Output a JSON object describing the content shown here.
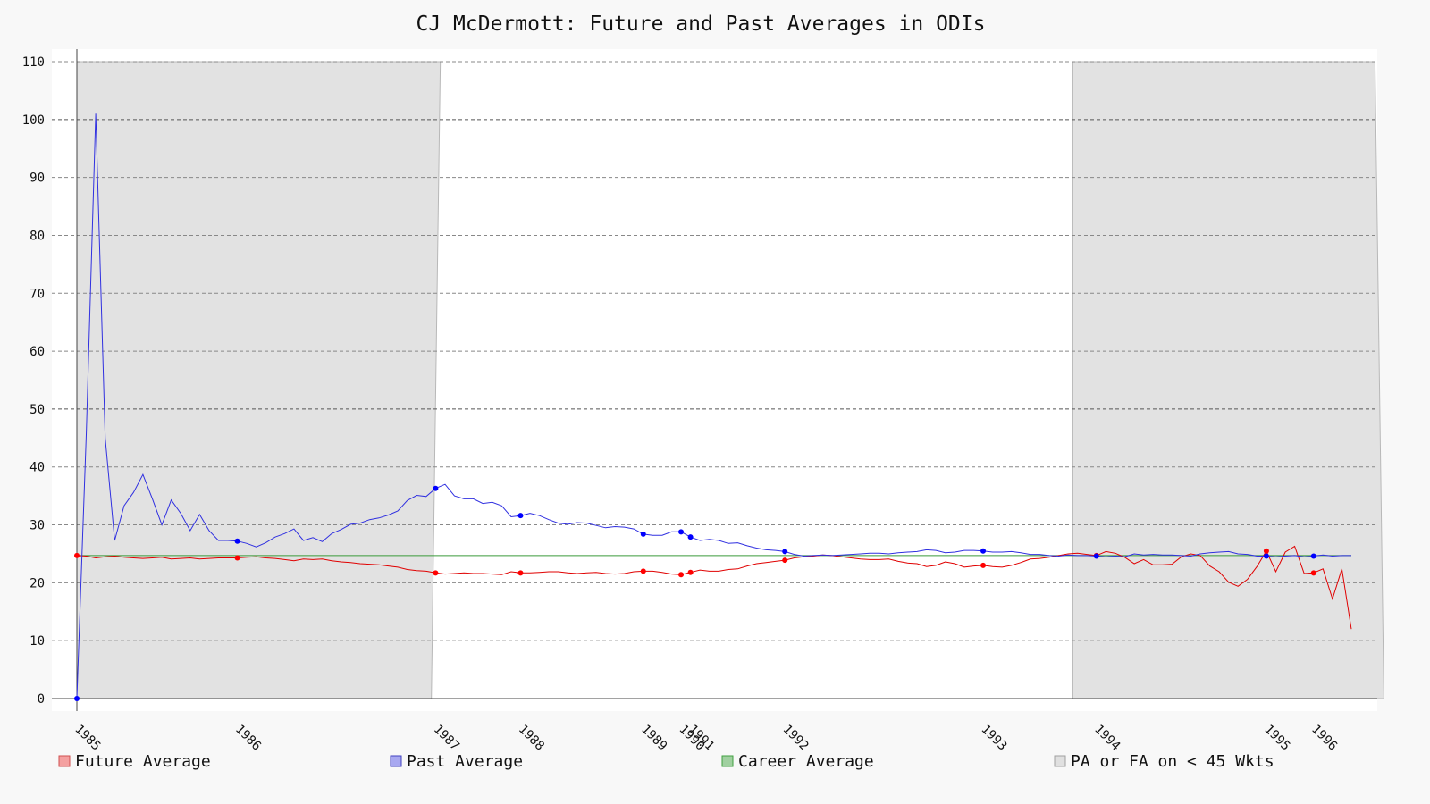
{
  "chart_data": {
    "type": "line",
    "title": "CJ McDermott: Future and Past Averages in ODIs",
    "xlabel": "",
    "ylabel": "",
    "ylim": [
      0,
      110
    ],
    "y_ticks": [
      0,
      10,
      20,
      30,
      40,
      50,
      60,
      70,
      80,
      90,
      100,
      110
    ],
    "x_axis_kind": "innings index (0-138)",
    "x_tick_labels": [
      {
        "i": 0,
        "label": "1985"
      },
      {
        "i": 17,
        "label": "1986"
      },
      {
        "i": 38,
        "label": "1987"
      },
      {
        "i": 47,
        "label": "1988"
      },
      {
        "i": 60,
        "label": "1989"
      },
      {
        "i": 64,
        "label": "1990"
      },
      {
        "i": 65,
        "label": "1991"
      },
      {
        "i": 75,
        "label": "1992"
      },
      {
        "i": 96,
        "label": "1993"
      },
      {
        "i": 108,
        "label": "1994"
      },
      {
        "i": 126,
        "label": "1995"
      },
      {
        "i": 131,
        "label": "1996"
      }
    ],
    "grid": true,
    "legend_position": "bottom",
    "shaded_regions": [
      [
        0,
        38.5
      ],
      [
        105.5,
        137.5
      ]
    ],
    "career_average": 24.7,
    "series": [
      {
        "name": "Future Average",
        "color": "#e00000",
        "values": [
          24.7,
          24.6,
          24.3,
          24.5,
          24.6,
          24.4,
          24.3,
          24.2,
          24.3,
          24.4,
          24.1,
          24.2,
          24.3,
          24.1,
          24.2,
          24.3,
          24.3,
          24.3,
          24.4,
          24.5,
          24.3,
          24.2,
          24.0,
          23.8,
          24.1,
          24.0,
          24.1,
          23.8,
          23.6,
          23.5,
          23.3,
          23.2,
          23.1,
          22.9,
          22.7,
          22.3,
          22.1,
          22.0,
          21.7,
          21.5,
          21.6,
          21.7,
          21.6,
          21.6,
          21.5,
          21.4,
          21.9,
          21.7,
          21.7,
          21.8,
          21.9,
          21.9,
          21.7,
          21.6,
          21.7,
          21.8,
          21.6,
          21.5,
          21.6,
          21.9,
          22.0,
          22.0,
          21.8,
          21.5,
          21.4,
          21.8,
          22.2,
          22.0,
          22.0,
          22.3,
          22.4,
          22.9,
          23.3,
          23.5,
          23.7,
          23.9,
          24.3,
          24.5,
          24.6,
          24.8,
          24.7,
          24.5,
          24.3,
          24.1,
          24.0,
          24.0,
          24.1,
          23.7,
          23.4,
          23.3,
          22.8,
          23.0,
          23.6,
          23.3,
          22.7,
          22.9,
          23.0,
          22.8,
          22.7,
          23.0,
          23.5,
          24.1,
          24.2,
          24.4,
          24.7,
          25.0,
          25.1,
          24.9,
          24.7,
          25.4,
          25.1,
          24.4,
          23.3,
          24.0,
          23.1,
          23.1,
          23.2,
          24.5,
          25.0,
          24.7,
          22.9,
          21.9,
          20.1,
          19.4,
          20.6,
          22.8,
          25.5,
          21.9,
          25.3,
          26.3,
          21.6,
          21.7,
          22.4,
          17.2,
          22.4,
          12.0
        ]
      },
      {
        "name": "Past Average",
        "color": "#3030e0",
        "values": [
          0,
          46.0,
          101.0,
          45.0,
          27.3,
          33.3,
          35.6,
          38.7,
          34.5,
          30.0,
          34.3,
          32.0,
          29.0,
          31.8,
          29.0,
          27.3,
          27.3,
          27.2,
          26.8,
          26.2,
          26.9,
          27.9,
          28.5,
          29.3,
          27.3,
          27.8,
          27.1,
          28.5,
          29.2,
          30.1,
          30.3,
          30.9,
          31.2,
          31.7,
          32.4,
          34.2,
          35.1,
          34.9,
          36.3,
          37.0,
          35.0,
          34.5,
          34.5,
          33.7,
          33.9,
          33.3,
          31.4,
          31.6,
          32.0,
          31.6,
          30.9,
          30.3,
          30.1,
          30.4,
          30.3,
          29.9,
          29.5,
          29.7,
          29.6,
          29.3,
          28.4,
          28.2,
          28.2,
          28.8,
          28.8,
          27.9,
          27.3,
          27.5,
          27.3,
          26.8,
          26.9,
          26.4,
          26.0,
          25.7,
          25.6,
          25.4,
          24.9,
          24.6,
          24.7,
          24.8,
          24.7,
          24.8,
          24.9,
          25.0,
          25.1,
          25.1,
          25.0,
          25.2,
          25.3,
          25.4,
          25.7,
          25.6,
          25.2,
          25.3,
          25.6,
          25.6,
          25.5,
          25.3,
          25.3,
          25.4,
          25.2,
          24.9,
          24.9,
          24.7,
          24.6,
          24.8,
          24.7,
          24.7,
          24.6,
          24.5,
          24.6,
          24.5,
          25.0,
          24.8,
          24.9,
          24.8,
          24.8,
          24.7,
          24.6,
          25.0,
          25.2,
          25.3,
          25.4,
          25.0,
          24.9,
          24.6,
          24.6,
          24.5,
          24.6,
          24.7,
          24.5,
          24.6,
          24.8,
          24.6,
          24.7,
          24.7
        ]
      }
    ],
    "legend": [
      {
        "label": "Future Average",
        "color": "#f4a0a0",
        "border": "#d05050"
      },
      {
        "label": "Past Average",
        "color": "#a8a8f0",
        "border": "#4040c0"
      },
      {
        "label": "Career Average",
        "color": "#a0d0a0",
        "border": "#40a040"
      },
      {
        "label": "PA or FA on < 45 Wkts",
        "color": "#e0e0e0",
        "border": "#a0a0a0"
      }
    ]
  }
}
